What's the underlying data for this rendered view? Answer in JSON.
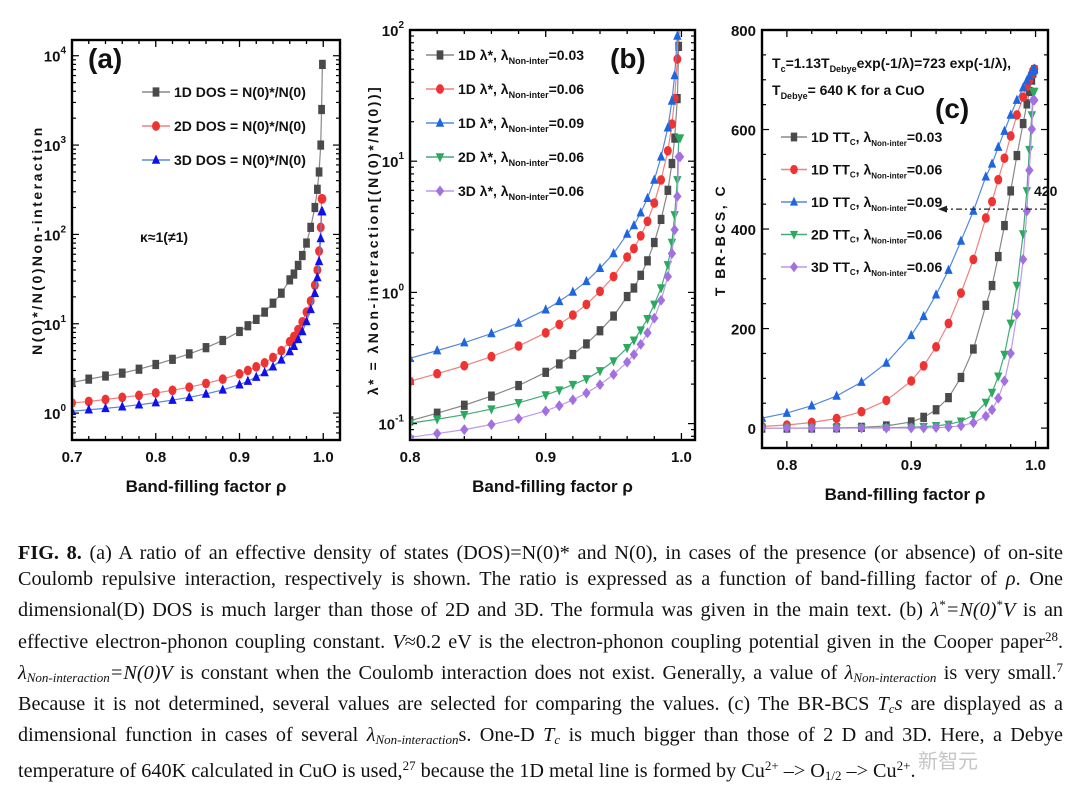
{
  "figure_label": "FIG. 8.",
  "caption": {
    "segments": [
      {
        "t": "(a) A ratio of an effective density of states (DOS)=N(0)* and N(0), in cases of the presence (or absence) of on-site Coulomb repulsive interaction, respectively is shown. The ratio is expressed as a function of band-filling factor of "
      },
      {
        "t": "ρ",
        "i": true
      },
      {
        "t": ". One dimensional(D) DOS is much larger than those of 2D and 3D. The formula was given in the main text. (b) "
      },
      {
        "t": "λ",
        "i": true
      },
      {
        "t": "*",
        "sup": true
      },
      {
        "t": "=N(0)",
        "i": true
      },
      {
        "t": "*",
        "sup": true
      },
      {
        "t": "V",
        "i": true
      },
      {
        "t": " is an effective electron-phonon coupling constant. "
      },
      {
        "t": "V",
        "i": true
      },
      {
        "t": "≈0.2 eV is the electron-phonon coupling potential given in the Cooper paper"
      },
      {
        "t": "28",
        "sup": true
      },
      {
        "t": ". "
      },
      {
        "t": "λ",
        "i": true
      },
      {
        "t": "Non-interaction",
        "sub": true
      },
      {
        "t": "=N(0)V",
        "i": true
      },
      {
        "t": " is constant when the Coulomb interaction does not exist. Generally, a value of "
      },
      {
        "t": "λ",
        "i": true
      },
      {
        "t": "Non-interaction",
        "sub": true
      },
      {
        "t": " is very small."
      },
      {
        "t": "7",
        "sup": true
      },
      {
        "t": " Because it is not determined, several values are selected for comparing the values. (c) The BR-BCS "
      },
      {
        "t": "T",
        "i": true
      },
      {
        "t": "c",
        "sub": true
      },
      {
        "t": "s",
        "i": true
      },
      {
        "t": " are displayed as a dimensional function in cases of several "
      },
      {
        "t": "λ",
        "i": true
      },
      {
        "t": "Non-interaction",
        "sub": true
      },
      {
        "t": "s. One-D "
      },
      {
        "t": "T",
        "i": true
      },
      {
        "t": "c",
        "sub": true
      },
      {
        "t": " is much bigger than those of 2 D and 3D. Here, a Debye temperature of 640K calculated in CuO is used,"
      },
      {
        "t": "27",
        "sup": true
      },
      {
        "t": " because the 1D metal line is formed by Cu"
      },
      {
        "t": "2+",
        "sup": true
      },
      {
        "t": " –> O"
      },
      {
        "t": "1/2",
        "sub": true,
        "plain": true
      },
      {
        "t": " –> Cu"
      },
      {
        "t": "2+",
        "sup": true
      },
      {
        "t": "."
      }
    ]
  },
  "watermark": "新智元",
  "chart_data": [
    {
      "type": "scatter",
      "panel": "(a)",
      "title": "",
      "xlabel": "Band-filling factor ρ",
      "ylabel": "N(0)*/N(0)Non-interaction",
      "yscale": "log",
      "xlim": [
        0.7,
        1.02
      ],
      "ylim": [
        0.5,
        15000
      ],
      "xticks": [
        "0.7",
        "0.8",
        "0.9",
        "1.0"
      ],
      "yticks": [
        {
          "v": 1,
          "label": "10^0"
        },
        {
          "v": 10,
          "label": "10^1"
        },
        {
          "v": 100,
          "label": "10^2"
        },
        {
          "v": 1000,
          "label": "10^3"
        },
        {
          "v": 10000,
          "label": "10^4"
        }
      ],
      "annotation": "κ≈1(≠1)",
      "legend_position": "top-center",
      "series": [
        {
          "name": "1D DOS = N(0)*/N(0)",
          "color": "#4a4a4a",
          "line": "#888888",
          "marker": "square",
          "x": [
            0.7,
            0.72,
            0.74,
            0.76,
            0.78,
            0.8,
            0.82,
            0.84,
            0.86,
            0.88,
            0.9,
            0.91,
            0.92,
            0.93,
            0.94,
            0.95,
            0.96,
            0.965,
            0.97,
            0.975,
            0.98,
            0.985,
            0.99,
            0.993,
            0.995,
            0.997,
            0.998,
            0.999
          ],
          "y": [
            2.2,
            2.4,
            2.6,
            2.8,
            3.1,
            3.5,
            4.0,
            4.6,
            5.4,
            6.5,
            8.2,
            9.5,
            11.2,
            13.5,
            17,
            22,
            31,
            36,
            45,
            58,
            80,
            120,
            200,
            320,
            500,
            1000,
            2500,
            8000
          ]
        },
        {
          "name": "2D DOS = N(0)*/N(0)",
          "color": "#ee3333",
          "line": "#f08080",
          "marker": "circle",
          "x": [
            0.7,
            0.72,
            0.74,
            0.76,
            0.78,
            0.8,
            0.82,
            0.84,
            0.86,
            0.88,
            0.9,
            0.91,
            0.92,
            0.93,
            0.94,
            0.95,
            0.96,
            0.965,
            0.97,
            0.975,
            0.98,
            0.985,
            0.99,
            0.993,
            0.995,
            0.997,
            0.998,
            0.999
          ],
          "y": [
            1.3,
            1.35,
            1.42,
            1.5,
            1.58,
            1.68,
            1.8,
            1.95,
            2.15,
            2.4,
            2.75,
            3.0,
            3.3,
            3.65,
            4.2,
            5.0,
            6.3,
            7.2,
            8.6,
            10.5,
            13.5,
            18,
            27,
            40,
            65,
            120,
            250,
            250
          ]
        },
        {
          "name": "3D DOS = N(0)*/N(0)",
          "color": "#1010ee",
          "line": "#5588dd",
          "marker": "triangle-up",
          "x": [
            0.7,
            0.72,
            0.74,
            0.76,
            0.78,
            0.8,
            0.82,
            0.84,
            0.86,
            0.88,
            0.9,
            0.91,
            0.92,
            0.93,
            0.94,
            0.95,
            0.96,
            0.965,
            0.97,
            0.975,
            0.98,
            0.985,
            0.99,
            0.993,
            0.995,
            0.997,
            0.998,
            0.999
          ],
          "y": [
            1.05,
            1.09,
            1.13,
            1.18,
            1.24,
            1.31,
            1.4,
            1.5,
            1.64,
            1.82,
            2.08,
            2.28,
            2.53,
            2.85,
            3.3,
            3.95,
            4.9,
            5.6,
            6.7,
            8.2,
            10.6,
            14.5,
            22,
            33,
            50,
            90,
            180,
            180
          ]
        }
      ]
    },
    {
      "type": "scatter",
      "panel": "(b)",
      "title": "",
      "xlabel": "Band-filling factor ρ",
      "ylabel": "λ* = λNon-interaction[(N(0)*/N(0))]",
      "yscale": "log",
      "xlim": [
        0.8,
        1.01
      ],
      "ylim": [
        0.075,
        100
      ],
      "xticks": [
        "0.8",
        "0.9",
        "1.0"
      ],
      "yticks": [
        {
          "v": 0.1,
          "label": "10^-1"
        },
        {
          "v": 1,
          "label": "10^0"
        },
        {
          "v": 10,
          "label": "10^1"
        },
        {
          "v": 100,
          "label": "10^2"
        }
      ],
      "legend_position": "top-left",
      "series": [
        {
          "name": "1D λ*, λNon-inter=0.03",
          "color": "#4a4a4a",
          "line": "#888888",
          "marker": "square",
          "lambda": 0.03
        },
        {
          "name": "1D λ*, λNon-inter=0.06",
          "color": "#ee3333",
          "line": "#f08080",
          "marker": "circle",
          "lambda": 0.06
        },
        {
          "name": "1D λ*, λNon-inter=0.09",
          "color": "#1e66e0",
          "line": "#5588dd",
          "marker": "triangle-up",
          "lambda": 0.09
        },
        {
          "name": "2D λ*, λNon-inter=0.06",
          "color": "#2aaa5f",
          "line": "#44aa77",
          "marker": "triangle-down",
          "lambda": 0.06
        },
        {
          "name": "3D λ*, λNon-inter=0.06",
          "color": "#a270e0",
          "line": "#bb99ee",
          "marker": "diamond",
          "lambda": 0.06
        }
      ],
      "note": "y = λNon-inter × (N(0)*/N(0)) using 1D/2D/3D series of panel (a)"
    },
    {
      "type": "scatter",
      "panel": "(c)",
      "title": "",
      "xlabel": "Band-filling factor ρ",
      "ylabel": "T BR-BCS, C",
      "yscale": "linear",
      "xlim": [
        0.78,
        1.01
      ],
      "ylim": [
        -40,
        800
      ],
      "xticks": [
        "0.8",
        "0.9",
        "1.0"
      ],
      "yticks": [
        {
          "v": 0,
          "label": "0"
        },
        {
          "v": 200,
          "label": "200"
        },
        {
          "v": 400,
          "label": "400"
        },
        {
          "v": 600,
          "label": "600"
        },
        {
          "v": 800,
          "label": "800"
        }
      ],
      "formula_line1": "Tc=1.13TDebyeexp(-1/λ)=723 exp(-1/λ),",
      "formula_line2": "TDebye= 640 K for a CuO",
      "arrow_annotation": "420",
      "arrow_value": 440,
      "legend_position": "left-center",
      "series": [
        {
          "name": "1D TC, λNon-inter=0.03",
          "color": "#4a4a4a",
          "line": "#888888",
          "marker": "square",
          "lambda": 0.03
        },
        {
          "name": "1D TC, λNon-inter=0.06",
          "color": "#ee3333",
          "line": "#f08080",
          "marker": "circle",
          "lambda": 0.06
        },
        {
          "name": "1D TC, λNon-inter=0.09",
          "color": "#1e66e0",
          "line": "#5588dd",
          "marker": "triangle-up",
          "lambda": 0.09
        },
        {
          "name": "2D TC, λNon-inter=0.06",
          "color": "#2aaa5f",
          "line": "#44aa77",
          "marker": "triangle-down",
          "lambda": 0.06
        },
        {
          "name": "3D TC, λNon-inter=0.06",
          "color": "#a270e0",
          "line": "#bb99ee",
          "marker": "diamond",
          "lambda": 0.06
        }
      ],
      "note": "y = 723·exp(-1/λ*) with λ* from panel (b)"
    }
  ]
}
